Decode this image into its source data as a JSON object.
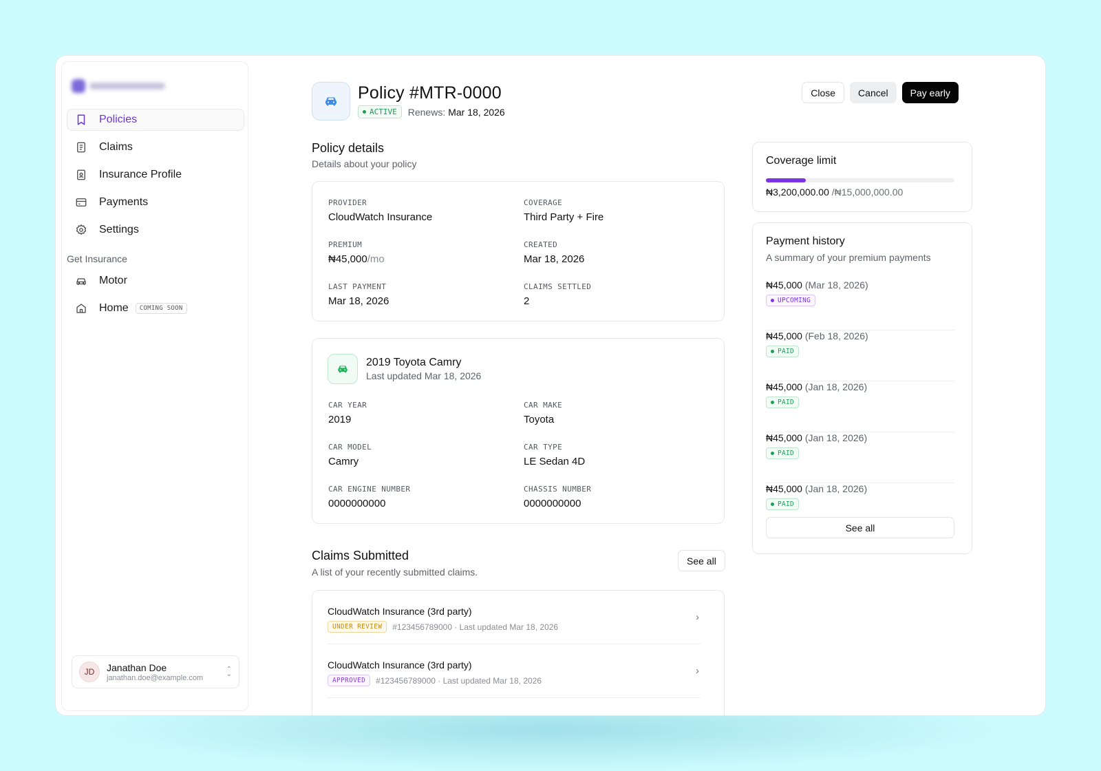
{
  "sidebar": {
    "nav": [
      {
        "label": "Policies",
        "icon": "bookmark-icon",
        "active": true
      },
      {
        "label": "Claims",
        "icon": "document-icon",
        "active": false
      },
      {
        "label": "Insurance Profile",
        "icon": "id-badge-icon",
        "active": false
      },
      {
        "label": "Payments",
        "icon": "credit-card-icon",
        "active": false
      },
      {
        "label": "Settings",
        "icon": "gear-icon",
        "active": false
      }
    ],
    "group_label": "Get Insurance",
    "insurance": [
      {
        "label": "Motor",
        "icon": "car-icon"
      },
      {
        "label": "Home",
        "icon": "home-icon",
        "badge": "COMING SOON"
      }
    ],
    "user": {
      "initials": "JD",
      "name": "Janathan Doe",
      "email": "janathan.doe@example.com"
    }
  },
  "header": {
    "title": "Policy #MTR-0000",
    "status": "ACTIVE",
    "renews_label": "Renews:",
    "renews_date": "Mar 18, 2026",
    "buttons": {
      "close": "Close",
      "cancel": "Cancel",
      "pay_early": "Pay early"
    }
  },
  "policy_details": {
    "title": "Policy details",
    "subtitle": "Details about your policy",
    "fields": {
      "provider": {
        "label": "PROVIDER",
        "value": "CloudWatch Insurance"
      },
      "coverage": {
        "label": "COVERAGE",
        "value": "Third Party + Fire"
      },
      "premium": {
        "label": "PREMIUM",
        "value": "₦45,000",
        "unit": "/mo"
      },
      "created": {
        "label": "CREATED",
        "value": "Mar 18, 2026"
      },
      "last_payment": {
        "label": "LAST PAYMENT",
        "value": "Mar 18, 2026"
      },
      "claims_settled": {
        "label": "CLAIMS SETTLED",
        "value": "2"
      }
    }
  },
  "vehicle": {
    "title": "2019 Toyota Camry",
    "subtitle": "Last updated Mar 18, 2026",
    "fields": {
      "car_year": {
        "label": "CAR YEAR",
        "value": "2019"
      },
      "car_make": {
        "label": "CAR MAKE",
        "value": "Toyota"
      },
      "car_model": {
        "label": "CAR MODEL",
        "value": "Camry"
      },
      "car_type": {
        "label": "CAR TYPE",
        "value": "LE Sedan 4D"
      },
      "engine_number": {
        "label": "CAR ENGINE NUMBER",
        "value": "0000000000"
      },
      "chassis_number": {
        "label": "CHASSIS NUMBER",
        "value": "0000000000"
      }
    }
  },
  "claims": {
    "title": "Claims Submitted",
    "subtitle": "A list of your recently submitted claims.",
    "see_all": "See all",
    "items": [
      {
        "name": "CloudWatch Insurance (3rd party)",
        "status": "UNDER REVIEW",
        "meta": "#123456789000 · Last updated Mar 18, 2026"
      },
      {
        "name": "CloudWatch Insurance (3rd party)",
        "status": "APPROVED",
        "meta": "#123456789000 · Last updated Mar 18, 2026"
      }
    ]
  },
  "coverage": {
    "title": "Coverage limit",
    "used": "₦3,200,000.00",
    "limit": "/₦15,000,000.00",
    "fraction_used": 0.213,
    "bar_color": "#7a35e0"
  },
  "payment_history": {
    "title": "Payment history",
    "subtitle": "A summary of your premium payments",
    "see_all": "See all",
    "items": [
      {
        "amount": "₦45,000",
        "date": "(Mar 18, 2026)",
        "status": "UPCOMING"
      },
      {
        "amount": "₦45,000",
        "date": "(Feb 18, 2026)",
        "status": "PAID"
      },
      {
        "amount": "₦45,000",
        "date": "(Jan 18, 2026)",
        "status": "PAID"
      },
      {
        "amount": "₦45,000",
        "date": "(Jan 18, 2026)",
        "status": "PAID"
      },
      {
        "amount": "₦45,000",
        "date": "(Jan 18, 2026)",
        "status": "PAID"
      }
    ]
  }
}
